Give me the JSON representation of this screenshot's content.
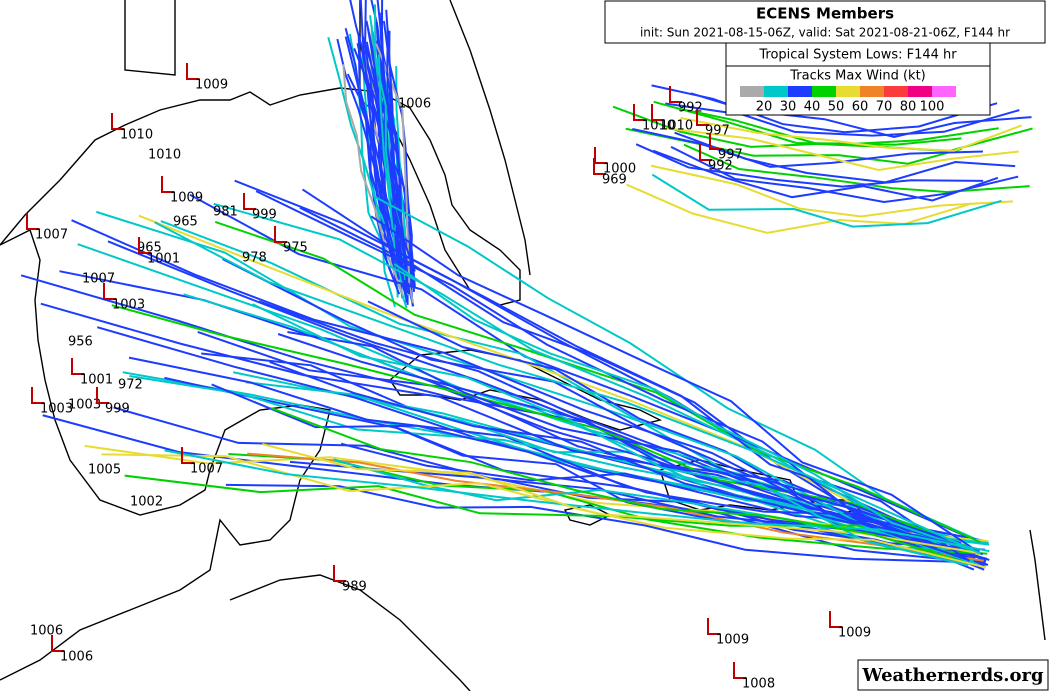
{
  "header": {
    "title": "ECENS Members",
    "subtitle": "init: Sun 2021-08-15-06Z, valid: Sat 2021-08-21-06Z, F144 hr"
  },
  "legend": {
    "title": "Tropical System Lows: F144 hr",
    "scale_title": "Tracks Max Wind (kt)",
    "colors": [
      "#aaaaaa",
      "#00c8c8",
      "#1e3cff",
      "#00d200",
      "#e6dc32",
      "#f08228",
      "#fa3c3c",
      "#f00082",
      "#ff64ff"
    ],
    "labels": [
      "20",
      "30",
      "40",
      "50",
      "60",
      "70",
      "80",
      "100"
    ]
  },
  "lows": [
    "1009",
    "1006",
    "1010",
    "1010",
    "1009",
    "981",
    "999",
    "965",
    "975",
    "965",
    "1001",
    "978",
    "1007",
    "1007",
    "1003",
    "956",
    "1001",
    "972",
    "1003",
    "1003",
    "999",
    "1005",
    "1007",
    "1002",
    "989",
    "1006",
    "1006",
    "1009",
    "1009",
    "1008",
    "992",
    "1010",
    "1010",
    "997",
    "997",
    "992",
    "1000",
    "969"
  ],
  "watermark": "Weathernerds.org"
}
